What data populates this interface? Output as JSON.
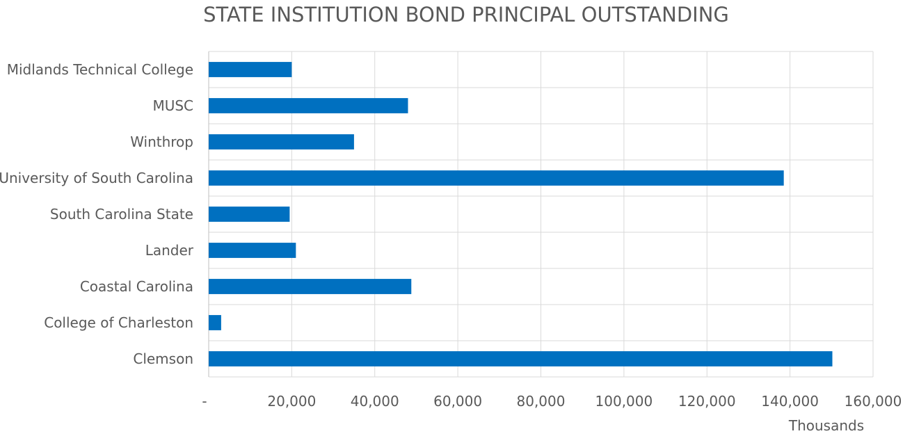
{
  "chart_data": {
    "type": "bar",
    "orientation": "horizontal",
    "title": "STATE INSTITUTION BOND PRINCIPAL OUTSTANDING",
    "x_unit_label": "Thousands",
    "xlim": [
      0,
      160000
    ],
    "x_ticks": [
      0,
      20000,
      40000,
      60000,
      80000,
      100000,
      120000,
      140000,
      160000
    ],
    "x_tick_labels": [
      "-",
      "20,000",
      "40,000",
      "60,000",
      "80,000",
      "100,000",
      "120,000",
      "140,000",
      "160,000"
    ],
    "grid": true,
    "categories": [
      "Midlands Technical College",
      "MUSC",
      "Winthrop",
      "University of South Carolina",
      "South Carolina State",
      "Lander",
      "Coastal Carolina",
      "College of Charleston",
      "Clemson"
    ],
    "values": [
      20000,
      48000,
      35000,
      138500,
      19500,
      21000,
      48800,
      3000,
      150200
    ],
    "bar_color": "#0070C0"
  }
}
